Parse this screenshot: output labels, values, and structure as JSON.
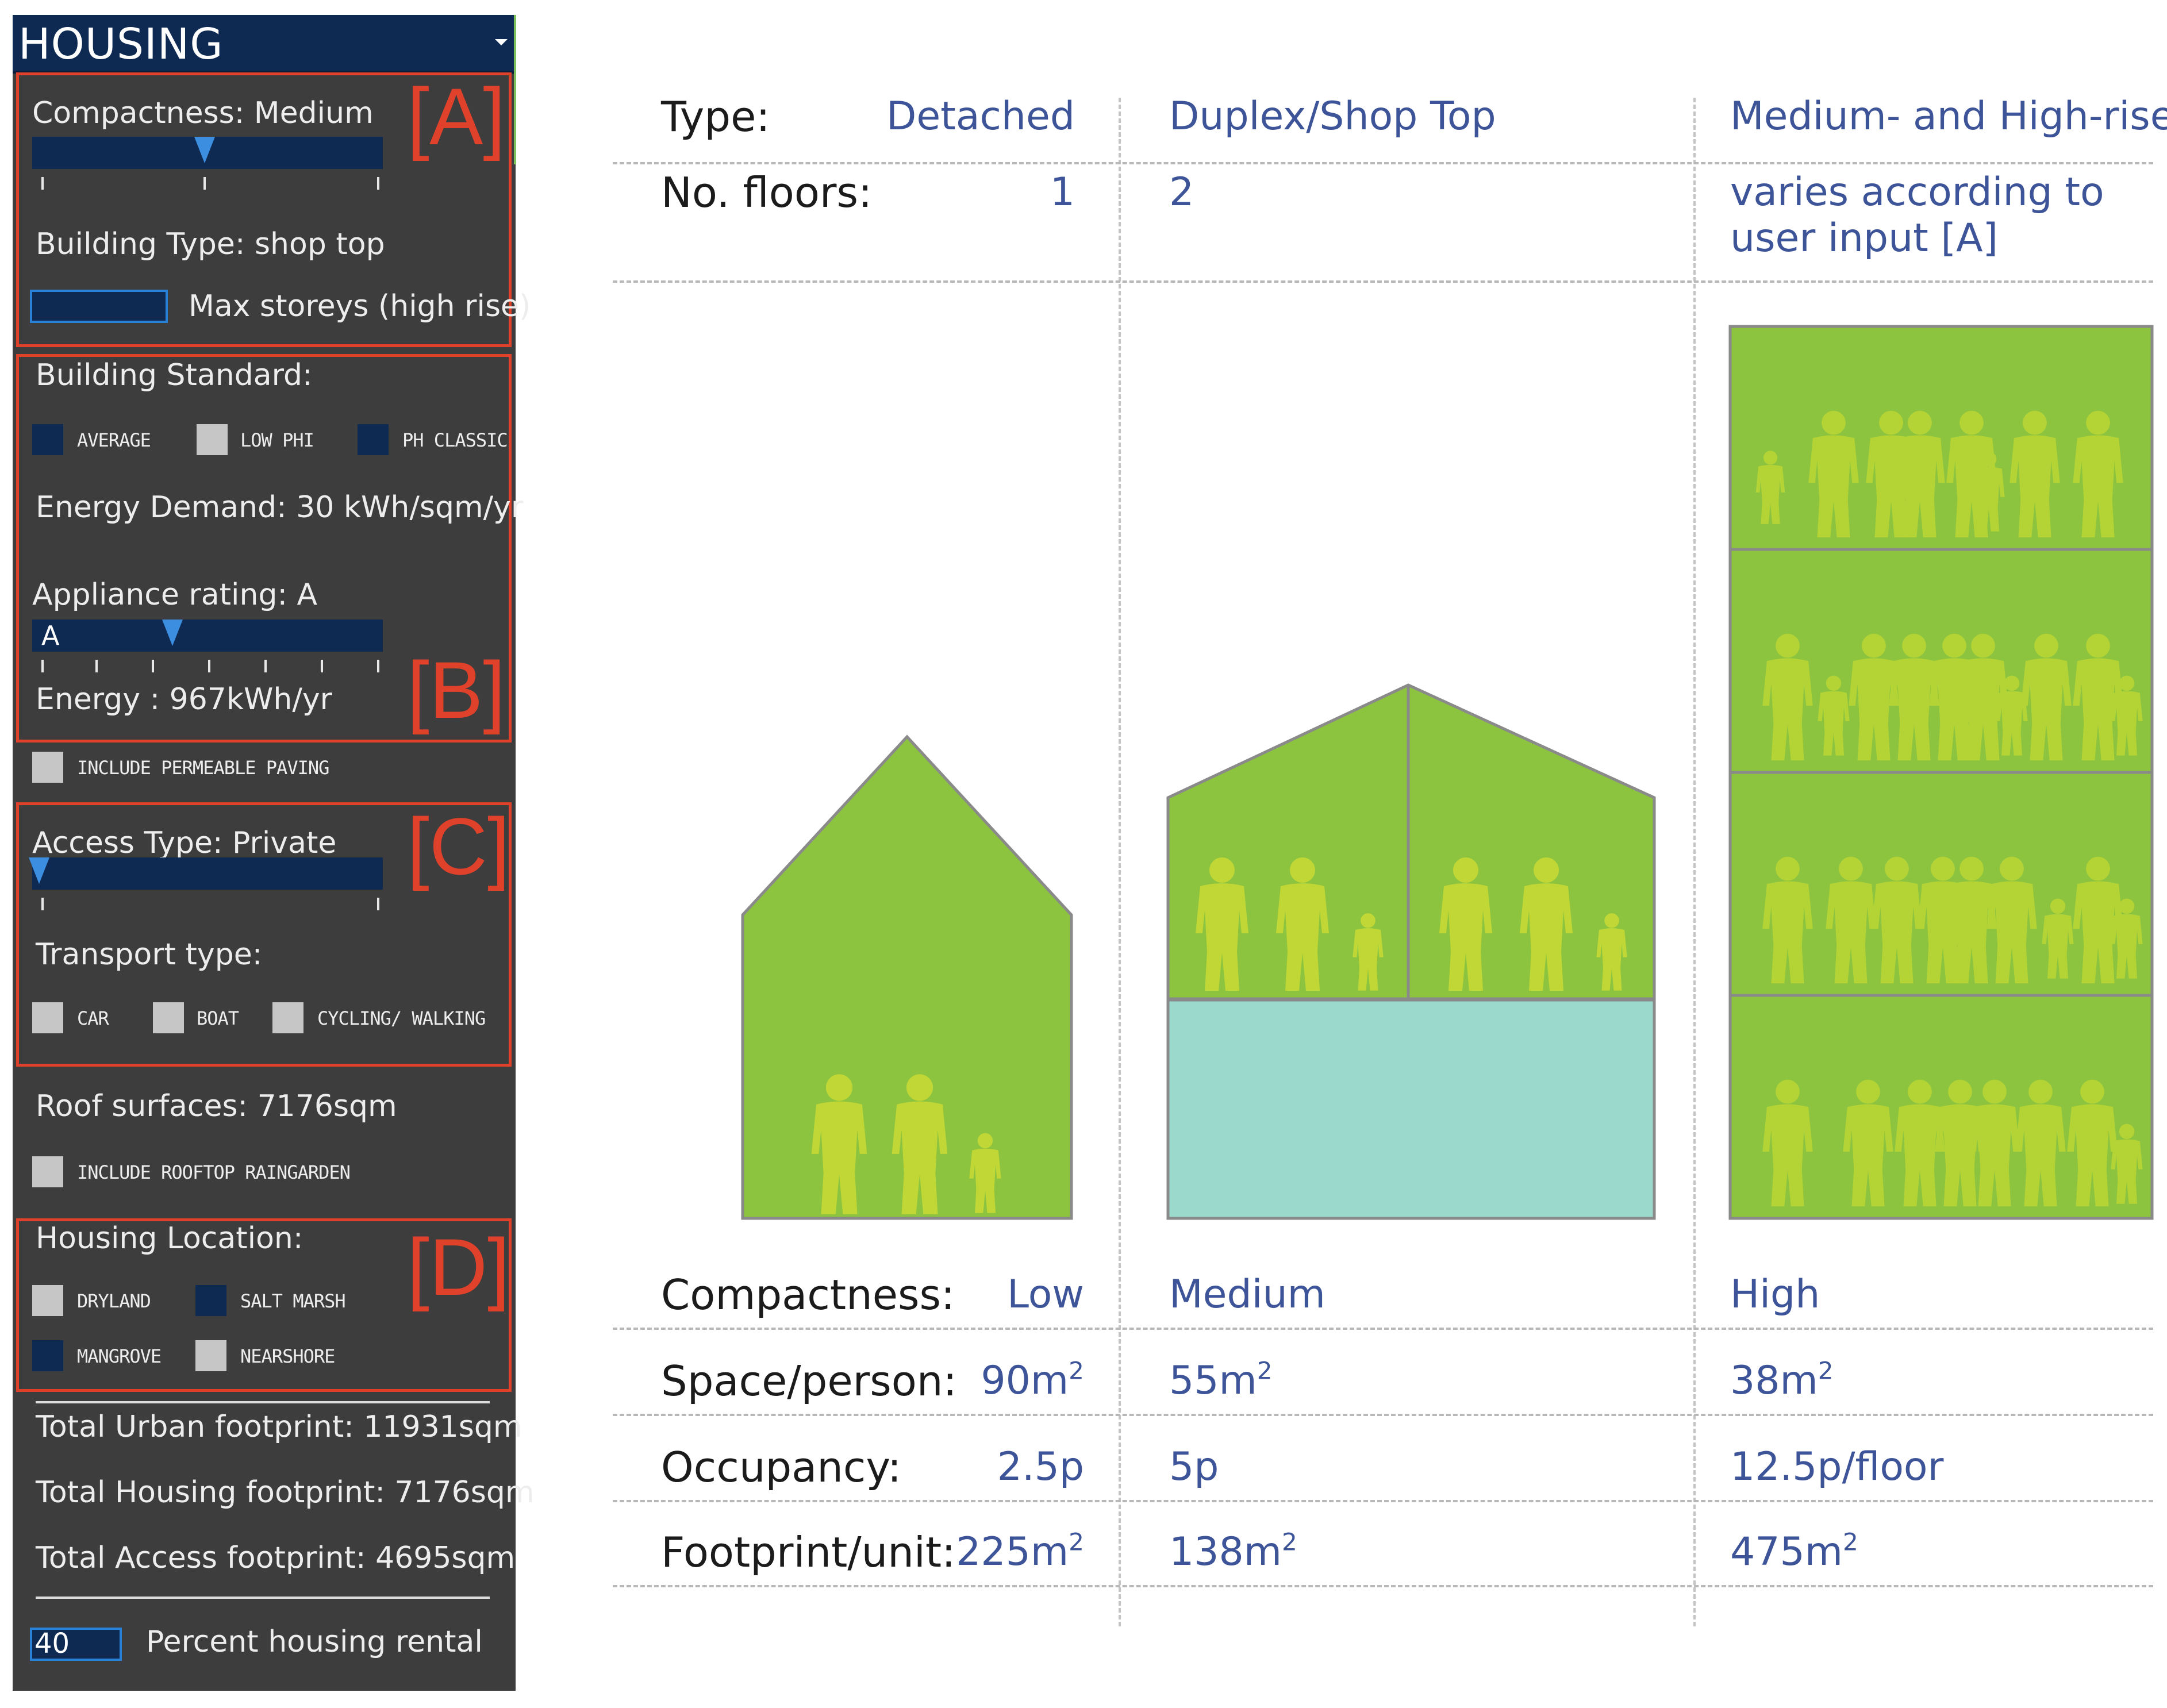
{
  "panel": {
    "title": "HOUSING",
    "section_labels": [
      "[A]",
      "[B]",
      "[C]",
      "[D]"
    ],
    "compactness": "Compactness: Medium",
    "building_type": "Building Type: shop top",
    "max_storeys": "Max storeys (high rise)",
    "building_standard": "Building Standard:",
    "standard_options": [
      "AVERAGE",
      "LOW PHI",
      "PH CLASSIC"
    ],
    "energy_demand": "Energy Demand: 30 kWh/sqm/yr",
    "appliance_rating": "Appliance rating: A",
    "appliance_slider_value": "A",
    "energy": "Energy : 967kWh/yr",
    "permeable_paving": "INCLUDE PERMEABLE PAVING",
    "access_type": "Access Type: Private",
    "transport_type": "Transport type:",
    "transport_options": [
      "CAR",
      "BOAT",
      "CYCLING/ WALKING"
    ],
    "roof_surfaces": "Roof surfaces: 7176sqm",
    "rooftop_raingarden": "INCLUDE ROOFTOP RAINGARDEN",
    "housing_location": "Housing Location:",
    "location_options": [
      "DRYLAND",
      "SALT MARSH",
      "MANGROVE",
      "NEARSHORE"
    ],
    "total_urban": "Total Urban footprint: 11931sqm",
    "total_housing": "Total Housing footprint: 7176sqm",
    "total_access": "Total Access footprint: 4695sqm",
    "rental_value": "40",
    "rental_label": "Percent housing rental"
  },
  "table": {
    "labels": {
      "type": "Type:",
      "floors": "No. floors:",
      "compactness": "Compactness:",
      "space": "Space/person:",
      "occupancy": "Occupancy:",
      "footprint": "Footprint/unit:"
    },
    "columns": [
      {
        "type": "Detached",
        "floors": "1",
        "compactness": "Low",
        "space": "90m",
        "occupancy": "2.5p",
        "footprint": "225m"
      },
      {
        "type": "Duplex/Shop Top",
        "floors": "2",
        "compactness": "Medium",
        "space": "55m",
        "occupancy": "5p",
        "footprint": "138m"
      },
      {
        "type": "Medium- and High-rise",
        "floors_line1": "varies according to",
        "floors_line2": "user input [A]",
        "compactness": "High",
        "space": "38m",
        "occupancy": "12.5p/floor",
        "footprint": "475m"
      }
    ],
    "superscript": "2"
  },
  "colors": {
    "panel_bg": "#3d3d3d",
    "navy": "#0f2a52",
    "red_outline": "#e0412b",
    "value_blue": "#3d5499",
    "house_green": "#8cc43f",
    "people_yellow": "#d6e22f",
    "shop_teal": "#9bd9cd"
  }
}
